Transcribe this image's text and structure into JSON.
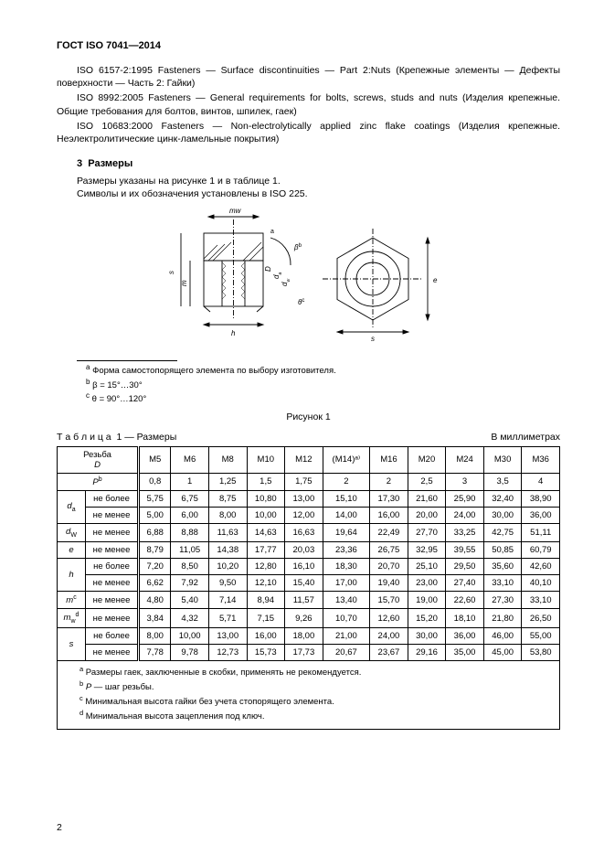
{
  "header": "ГОСТ ISO 7041—2014",
  "paragraphs": [
    "ISO 6157-2:1995 Fasteners — Surface discontinuities — Part 2:Nuts (Крепежные элементы — Дефекты поверхности — Часть 2: Гайки)",
    "ISO 8992:2005 Fasteners — General requirements for bolts, screws, studs and nuts (Изделия крепежные. Общие требования для болтов, винтов, шпилек, гаек)",
    "ISO 10683:2000 Fasteners — Non-electrolytically applied zinc flake coatings (Изделия крепежные. Неэлектролитические цинк-ламельные покрытия)"
  ],
  "section": {
    "num": "3",
    "title": "Размеры"
  },
  "sub": [
    "Размеры указаны на рисунке 1 и в таблице 1.",
    "Символы и их обозначения установлены в ISO 225."
  ],
  "fig": {
    "footnotes": [
      {
        "mark": "a",
        "text": "Форма самостопорящего элемента по выбору изготовителя."
      },
      {
        "mark": "b",
        "text": "β = 15°…30°"
      },
      {
        "mark": "c",
        "text": "θ = 90°…120°"
      }
    ],
    "caption": "Рисунок 1",
    "labels": {
      "mw": "mw",
      "h": "h",
      "D": "D",
      "da": "da",
      "dw": "dw",
      "beta": "β",
      "theta": "θ",
      "e": "e",
      "s": "s",
      "a": "a",
      "b": "b",
      "c": "c"
    }
  },
  "tableTitle": {
    "label": "Т а б л и ц а",
    "num": "1 — Размеры",
    "units": "В миллиметрах"
  },
  "table": {
    "headTop": "Резьба",
    "headBot": "D",
    "cols": [
      "M5",
      "M6",
      "M8",
      "M10",
      "M12",
      "(M14)ᵃ⁾",
      "M16",
      "M20",
      "M24",
      "M30",
      "M36"
    ],
    "rows": [
      {
        "label": "P",
        "sup": "b",
        "sub": "",
        "vals": [
          "0,8",
          "1",
          "1,25",
          "1,5",
          "1,75",
          "2",
          "2",
          "2,5",
          "3",
          "3,5",
          "4"
        ]
      }
    ],
    "groups": [
      {
        "label": "d",
        "subscr": "a",
        "rows": [
          {
            "sub": "не более",
            "vals": [
              "5,75",
              "6,75",
              "8,75",
              "10,80",
              "13,00",
              "15,10",
              "17,30",
              "21,60",
              "25,90",
              "32,40",
              "38,90"
            ]
          },
          {
            "sub": "не менее",
            "vals": [
              "5,00",
              "6,00",
              "8,00",
              "10,00",
              "12,00",
              "14,00",
              "16,00",
              "20,00",
              "24,00",
              "30,00",
              "36,00"
            ]
          }
        ]
      },
      {
        "label": "d",
        "subscr": "W",
        "single": true,
        "sub": "не менее",
        "vals": [
          "6,88",
          "8,88",
          "11,63",
          "14,63",
          "16,63",
          "19,64",
          "22,49",
          "27,70",
          "33,25",
          "42,75",
          "51,11"
        ]
      },
      {
        "label": "e",
        "single": true,
        "sub": "не менее",
        "vals": [
          "8,79",
          "11,05",
          "14,38",
          "17,77",
          "20,03",
          "23,36",
          "26,75",
          "32,95",
          "39,55",
          "50,85",
          "60,79"
        ]
      },
      {
        "label": "h",
        "rows": [
          {
            "sub": "не более",
            "vals": [
              "7,20",
              "8,50",
              "10,20",
              "12,80",
              "16,10",
              "18,30",
              "20,70",
              "25,10",
              "29,50",
              "35,60",
              "42,60"
            ]
          },
          {
            "sub": "не менее",
            "vals": [
              "6,62",
              "7,92",
              "9,50",
              "12,10",
              "15,40",
              "17,00",
              "19,40",
              "23,00",
              "27,40",
              "33,10",
              "40,10"
            ]
          }
        ]
      },
      {
        "label": "m",
        "sup": "c",
        "single": true,
        "sub": "не менее",
        "vals": [
          "4,80",
          "5,40",
          "7,14",
          "8,94",
          "11,57",
          "13,40",
          "15,70",
          "19,00",
          "22,60",
          "27,30",
          "33,10"
        ]
      },
      {
        "label": "m",
        "subscr": "w",
        "sup": "d",
        "single": true,
        "sub": "не менее",
        "vals": [
          "3,84",
          "4,32",
          "5,71",
          "7,15",
          "9,26",
          "10,70",
          "12,60",
          "15,20",
          "18,10",
          "21,80",
          "26,50"
        ]
      },
      {
        "label": "s",
        "rows": [
          {
            "sub": "не более",
            "vals": [
              "8,00",
              "10,00",
              "13,00",
              "16,00",
              "18,00",
              "21,00",
              "24,00",
              "30,00",
              "36,00",
              "46,00",
              "55,00"
            ]
          },
          {
            "sub": "не менее",
            "vals": [
              "7,78",
              "9,78",
              "12,73",
              "15,73",
              "17,73",
              "20,67",
              "23,67",
              "29,16",
              "35,00",
              "45,00",
              "53,80"
            ]
          }
        ]
      }
    ],
    "footnotes": [
      {
        "mark": "a",
        "text": "Размеры гаек, заключенные в скобки, применять не рекомендуется."
      },
      {
        "mark": "b",
        "text": "P — шаг резьбы.",
        "ital": "P"
      },
      {
        "mark": "c",
        "text": "Минимальная высота гайки без учета стопорящего элемента."
      },
      {
        "mark": "d",
        "text": "Минимальная высота зацепления под ключ."
      }
    ]
  },
  "pageNumber": "2"
}
